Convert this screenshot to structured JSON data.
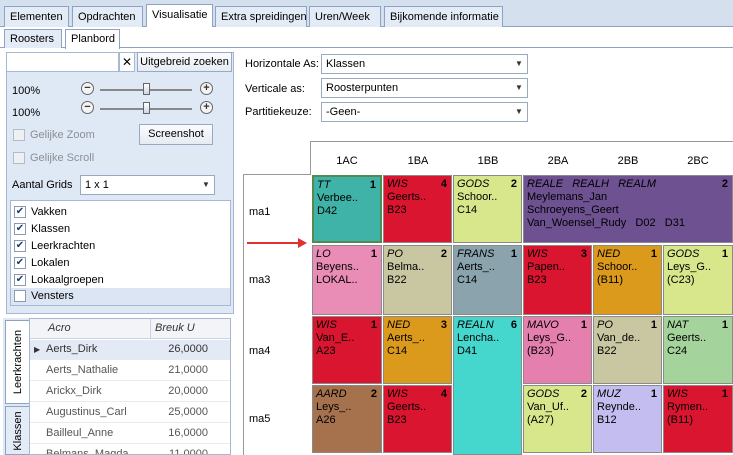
{
  "top_tabs": [
    "Elementen",
    "Opdrachten",
    "Visualisatie",
    "Extra spreidingen",
    "Uren/Week",
    "Bijkomende informatie"
  ],
  "sub_tabs": [
    "Roosters",
    "Planbord"
  ],
  "left": {
    "search_value": "",
    "advanced_search": "Uitgebreid zoeken",
    "zoom1": "100%",
    "zoom2": "100%",
    "equal_zoom": "Gelijke Zoom",
    "screenshot": "Screenshot",
    "equal_scroll": "Gelijke Scroll",
    "grids_label": "Aantal Grids",
    "grids_value": "1 x 1",
    "checklist": [
      {
        "label": "Vakken",
        "checked": true
      },
      {
        "label": "Klassen",
        "checked": true
      },
      {
        "label": "Leerkrachten",
        "checked": true
      },
      {
        "label": "Lokalen",
        "checked": true
      },
      {
        "label": "Lokaalgroepen",
        "checked": true
      },
      {
        "label": "Vensters",
        "checked": false
      }
    ],
    "vtabs": [
      "Leerkrachten",
      "Klassen"
    ],
    "table": {
      "headers": [
        "Acro",
        "Breuk U"
      ],
      "rows": [
        [
          "Aerts_Dirk",
          "26,0000"
        ],
        [
          "Aerts_Nathalie",
          "21,0000"
        ],
        [
          "Arickx_Dirk",
          "20,0000"
        ],
        [
          "Augustinus_Carl",
          "25,0000"
        ],
        [
          "Bailleul_Anne",
          "16,0000"
        ],
        [
          "Belmans_Magda",
          "11,0000"
        ]
      ]
    }
  },
  "options": {
    "h_axis_label": "Horizontale As:",
    "h_axis_value": "Klassen",
    "v_axis_label": "Verticale as:",
    "v_axis_value": "Roosterpunten",
    "partition_label": "Partitiekeuze:",
    "partition_value": "-Geen-"
  },
  "planbord": {
    "columns": [
      "1AC",
      "1BA",
      "1BB",
      "2BA",
      "2BB",
      "2BC"
    ],
    "rows": [
      "ma1",
      "ma3",
      "ma4",
      "ma5"
    ],
    "cells": {
      "ma1_1AC": {
        "subj": "TT",
        "n": "1",
        "l2": "Verbee..",
        "l3": "D42",
        "color": "#3fb3a8"
      },
      "ma1_1BA": {
        "subj": "WIS",
        "n": "4",
        "l2": "Geerts..",
        "l3": "B23",
        "color": "#d9152f"
      },
      "ma1_1BB": {
        "subj": "GODS",
        "n": "2",
        "l2": "Schoor..",
        "l3": "C14",
        "color": "#d8e68c"
      },
      "ma1_2BA": {
        "subj": "REALE   REALH   REALM",
        "n": "2",
        "l2": "Meylemans_Jan",
        "l3": "Schroeyens_Geert",
        "l4": "Van_Woensel_Rudy   D02   D31",
        "color": "#6d5190"
      },
      "ma3_1AC": {
        "subj": "LO",
        "n": "1",
        "l2": "Beyens..",
        "l3": "LOKAL..",
        "color": "#e98db6"
      },
      "ma3_1BA": {
        "subj": "PO",
        "n": "2",
        "l2": "Belma..",
        "l3": "B22",
        "color": "#c8c7a2"
      },
      "ma3_1BB": {
        "subj": "FRANS",
        "n": "1",
        "l2": "Aerts_..",
        "l3": "C14",
        "color": "#8aa3ad"
      },
      "ma3_2BA": {
        "subj": "WIS",
        "n": "3",
        "l2": "Papen..",
        "l3": "B23",
        "color": "#d9152f"
      },
      "ma3_2BB": {
        "subj": "NED",
        "n": "1",
        "l2": "Schoor..",
        "l3": "(B11)",
        "color": "#dc9a1c"
      },
      "ma3_2BC": {
        "subj": "GODS",
        "n": "1",
        "l2": "Leys_G..",
        "l3": "(C23)",
        "color": "#d8e68c"
      },
      "ma4_1AC": {
        "subj": "WIS",
        "n": "1",
        "l2": "Van_E..",
        "l3": "A23",
        "color": "#d9152f"
      },
      "ma4_1BA": {
        "subj": "NED",
        "n": "3",
        "l2": "Aerts_..",
        "l3": "C14",
        "color": "#dc9a1c"
      },
      "ma4_1BB": {
        "subj": "REALN",
        "n": "6",
        "l2": "Lencha..",
        "l3": "D41",
        "color": "#45d6cd"
      },
      "ma4_2BA": {
        "subj": "MAVO",
        "n": "1",
        "l2": "Leys_G..",
        "l3": "(B23)",
        "color": "#e57fae"
      },
      "ma4_2BB": {
        "subj": "PO",
        "n": "1",
        "l2": "Van_de..",
        "l3": "B22",
        "color": "#c8c7a2"
      },
      "ma4_2BC": {
        "subj": "NAT",
        "n": "1",
        "l2": "Geerts..",
        "l3": "C24",
        "color": "#a4d49c"
      },
      "ma5_1AC": {
        "subj": "AARD",
        "n": "2",
        "l2": "Leys_..",
        "l3": "A26",
        "color": "#a6724e"
      },
      "ma5_1BA": {
        "subj": "WIS",
        "n": "4",
        "l2": "Geerts..",
        "l3": "B23",
        "color": "#d9152f"
      },
      "ma5_2BA": {
        "subj": "GODS",
        "n": "2",
        "l2": "Van_Uf..",
        "l3": "(A27)",
        "color": "#d8e68c"
      },
      "ma5_2BB": {
        "subj": "MUZ",
        "n": "1",
        "l2": "Reynde..",
        "l3": "B12",
        "color": "#c3bdf0"
      },
      "ma5_2BC": {
        "subj": "WIS",
        "n": "1",
        "l2": "Rymen..",
        "l3": "(B11)",
        "color": "#d9152f"
      }
    }
  }
}
